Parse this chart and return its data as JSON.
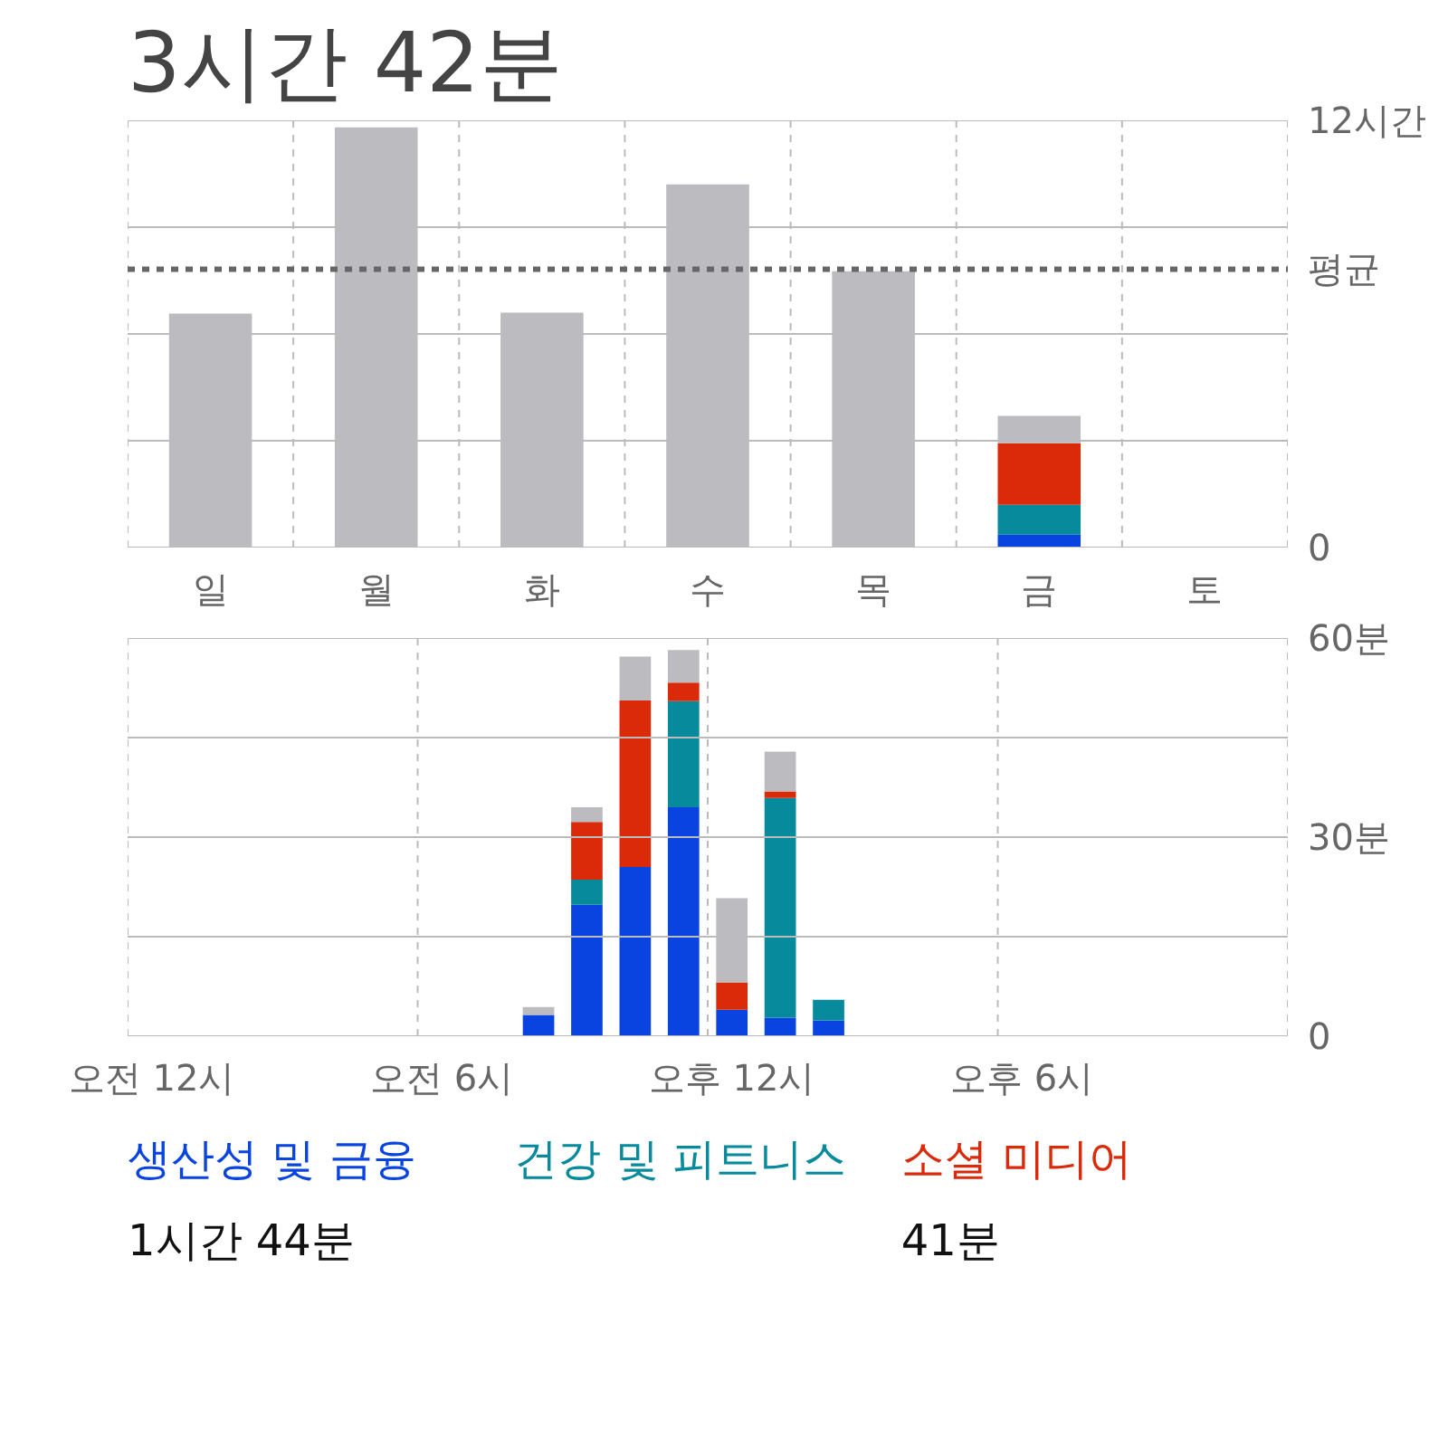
{
  "chart_data": [
    {
      "type": "bar",
      "title": "3시간 42분",
      "categories": [
        "일",
        "월",
        "화",
        "수",
        "목",
        "금",
        "토"
      ],
      "stacked": true,
      "series": [
        {
          "color": "#0a44e0",
          "values": [
            null,
            null,
            null,
            null,
            null,
            0.36,
            null
          ]
        },
        {
          "color": "#068a9c",
          "values": [
            null,
            null,
            null,
            null,
            null,
            0.84,
            null
          ]
        },
        {
          "color": "#db2a0a",
          "values": [
            null,
            null,
            null,
            null,
            null,
            1.73,
            null
          ]
        },
        {
          "color": "#bbbbc0",
          "values": [
            6.57,
            11.8,
            6.6,
            10.2,
            7.76,
            0.77,
            null
          ]
        }
      ],
      "ylim": [
        0,
        12
      ],
      "yticks": [
        0,
        {
          "value": 3,
          "label": null
        },
        {
          "value": 6,
          "label": null
        },
        {
          "value": 9,
          "label": null
        },
        {
          "value": 12,
          "label": "12시간"
        }
      ],
      "ref_lines": [
        {
          "axis": "y",
          "value": 7.82,
          "label": "평균",
          "color": "#666666",
          "line_style": "dashed"
        }
      ],
      "grid": true,
      "legend": false
    },
    {
      "type": "bar",
      "categories": [
        "오전 12시",
        null,
        null,
        null,
        null,
        null,
        "오전 6시",
        null,
        null,
        null,
        null,
        null,
        "오후 12시",
        null,
        null,
        null,
        null,
        null,
        "오후 6시",
        null,
        null,
        null,
        null,
        null
      ],
      "stacked": true,
      "series": [
        {
          "name": "생산성 및 금융",
          "color": "#0a44e0",
          "values": [
            null,
            null,
            null,
            null,
            null,
            null,
            null,
            null,
            3.2,
            19.8,
            25.5,
            34.5,
            4.0,
            2.8,
            2.4,
            null,
            null,
            null,
            null,
            null,
            null,
            null,
            null,
            null
          ]
        },
        {
          "name": "건강 및 피트니스",
          "color": "#068a9c",
          "values": [
            null,
            null,
            null,
            null,
            null,
            null,
            null,
            null,
            null,
            3.8,
            null,
            16.0,
            null,
            33.1,
            3.1,
            null,
            null,
            null,
            null,
            null,
            null,
            null,
            null,
            null
          ]
        },
        {
          "name": "소셜 미디어",
          "color": "#db2a0a",
          "values": [
            null,
            null,
            null,
            null,
            null,
            null,
            null,
            null,
            null,
            8.7,
            25.1,
            2.8,
            4.1,
            1.0,
            null,
            null,
            null,
            null,
            null,
            null,
            null,
            null,
            null,
            null
          ]
        },
        {
          "color": "#bbbbc0",
          "values": [
            null,
            null,
            null,
            null,
            null,
            null,
            null,
            null,
            1.2,
            2.2,
            6.6,
            4.9,
            12.7,
            6.0,
            null,
            null,
            null,
            null,
            null,
            null,
            null,
            null,
            null,
            null
          ]
        }
      ],
      "ylim": [
        0,
        60
      ],
      "yticks": [
        0,
        {
          "value": 15,
          "label": null
        },
        {
          "value": 30,
          "label": "30분"
        },
        {
          "value": 45,
          "label": null
        },
        {
          "value": 60,
          "label": "60분"
        }
      ],
      "annotations": [
        "1시간 44분",
        null,
        "41분"
      ],
      "grid": true,
      "legend": "bottom"
    }
  ]
}
